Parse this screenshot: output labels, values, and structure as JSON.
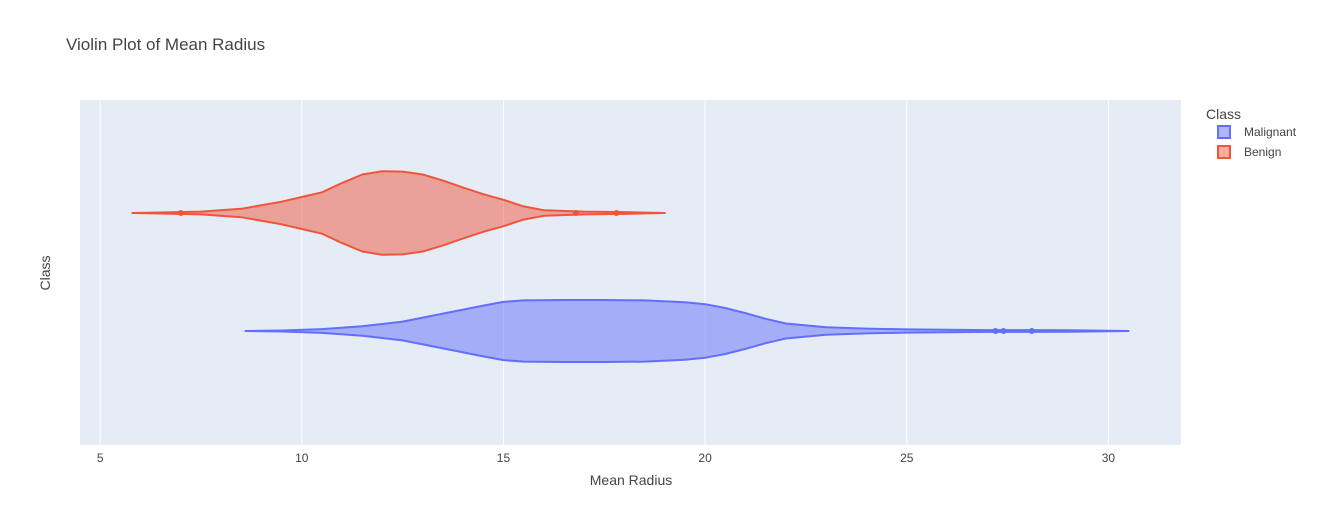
{
  "chart_data": {
    "type": "violin",
    "orientation": "horizontal",
    "title": "Violin Plot of Mean Radius",
    "xlabel": "Mean Radius",
    "ylabel": "Class",
    "xlim": [
      4.5,
      31.8
    ],
    "x_ticks": [
      5,
      10,
      15,
      20,
      25,
      30
    ],
    "grid": true,
    "legend_title": "Class",
    "legend_position": "top-right",
    "plot_bg": "#e5ecf6",
    "series": [
      {
        "name": "Malignant",
        "color": "#636efa",
        "fill": "rgba(99,110,250,0.5)",
        "range": [
          8.6,
          30.5
        ],
        "density": [
          [
            8.6,
            0.0
          ],
          [
            9.5,
            0.01
          ],
          [
            10.5,
            0.04
          ],
          [
            11.5,
            0.1
          ],
          [
            12.5,
            0.2
          ],
          [
            13.5,
            0.37
          ],
          [
            14.5,
            0.54
          ],
          [
            15.0,
            0.62
          ],
          [
            15.5,
            0.65
          ],
          [
            16.5,
            0.66
          ],
          [
            17.5,
            0.66
          ],
          [
            18.5,
            0.65
          ],
          [
            19.5,
            0.61
          ],
          [
            20.0,
            0.57
          ],
          [
            20.5,
            0.49
          ],
          [
            21.0,
            0.38
          ],
          [
            21.5,
            0.26
          ],
          [
            22.0,
            0.16
          ],
          [
            23.0,
            0.08
          ],
          [
            24.0,
            0.05
          ],
          [
            25.0,
            0.035
          ],
          [
            26.0,
            0.025
          ],
          [
            27.0,
            0.02
          ],
          [
            28.0,
            0.02
          ],
          [
            29.0,
            0.015
          ],
          [
            30.5,
            0.0
          ]
        ],
        "outliers": [
          27.2,
          27.4,
          28.1
        ]
      },
      {
        "name": "Benign",
        "color": "#ef553b",
        "fill": "rgba(239,85,59,0.5)",
        "range": [
          5.8,
          19.0
        ],
        "density": [
          [
            5.8,
            0.0
          ],
          [
            6.5,
            0.01
          ],
          [
            7.5,
            0.03
          ],
          [
            8.5,
            0.09
          ],
          [
            9.5,
            0.24
          ],
          [
            10.0,
            0.34
          ],
          [
            10.5,
            0.44
          ],
          [
            11.0,
            0.64
          ],
          [
            11.5,
            0.82
          ],
          [
            12.0,
            0.89
          ],
          [
            12.5,
            0.88
          ],
          [
            13.0,
            0.82
          ],
          [
            13.5,
            0.69
          ],
          [
            14.0,
            0.54
          ],
          [
            14.5,
            0.4
          ],
          [
            15.0,
            0.28
          ],
          [
            15.5,
            0.14
          ],
          [
            16.0,
            0.06
          ],
          [
            17.0,
            0.03
          ],
          [
            18.0,
            0.02
          ],
          [
            19.0,
            0.0
          ]
        ],
        "outliers": [
          7.0,
          16.8,
          17.8
        ]
      }
    ]
  }
}
